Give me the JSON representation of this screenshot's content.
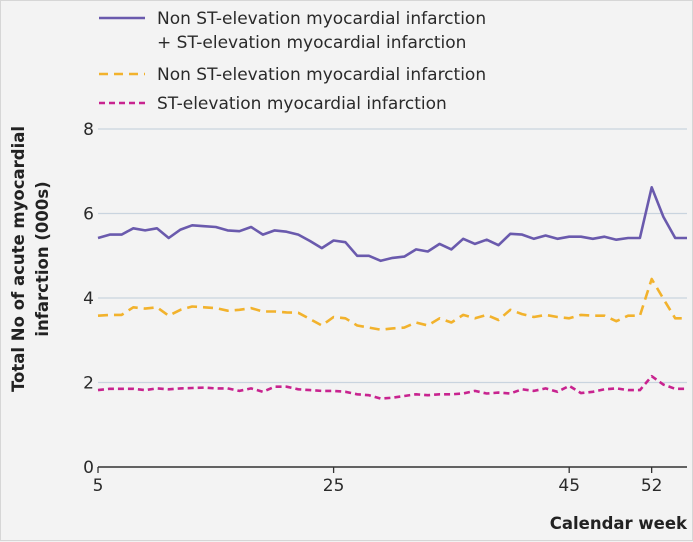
{
  "chart_data": {
    "type": "line",
    "xlabel": "Calendar week",
    "ylabel_line1": "Total No of acute myocardial",
    "ylabel_line2": "infarction (000s)",
    "xlim": [
      5,
      55
    ],
    "ylim": [
      0,
      8
    ],
    "x_ticks": [
      5,
      25,
      45,
      52
    ],
    "y_ticks": [
      0,
      2,
      4,
      6,
      8
    ],
    "grid": true,
    "legend_position": "top-left",
    "x": [
      5,
      6,
      7,
      8,
      9,
      10,
      11,
      12,
      13,
      14,
      15,
      16,
      17,
      18,
      19,
      20,
      21,
      22,
      23,
      24,
      25,
      26,
      27,
      28,
      29,
      30,
      31,
      32,
      33,
      34,
      35,
      36,
      37,
      38,
      39,
      40,
      41,
      42,
      43,
      44,
      45,
      46,
      47,
      48,
      49,
      50,
      51,
      52,
      53,
      54,
      55
    ],
    "series": [
      {
        "name_line1": "Non ST-elevation myocardial infarction",
        "name_line2": "+ ST-elevation myocardial infarction",
        "color": "#6a5aad",
        "dash": "solid",
        "values": [
          5.42,
          5.5,
          5.5,
          5.65,
          5.6,
          5.65,
          5.42,
          5.62,
          5.72,
          5.7,
          5.68,
          5.6,
          5.58,
          5.68,
          5.5,
          5.6,
          5.57,
          5.5,
          5.35,
          5.18,
          5.36,
          5.32,
          5.0,
          5.0,
          4.88,
          4.95,
          4.98,
          5.15,
          5.1,
          5.28,
          5.15,
          5.4,
          5.28,
          5.38,
          5.25,
          5.52,
          5.5,
          5.4,
          5.48,
          5.4,
          5.45,
          5.45,
          5.4,
          5.45,
          5.38,
          5.42,
          5.42,
          6.62,
          5.92,
          5.42,
          5.42
        ]
      },
      {
        "name_line1": "Non ST-elevation myocardial infarction",
        "color": "#f2b22c",
        "dash": "dashed",
        "values": [
          3.58,
          3.6,
          3.6,
          3.78,
          3.75,
          3.78,
          3.58,
          3.72,
          3.8,
          3.78,
          3.76,
          3.7,
          3.72,
          3.76,
          3.68,
          3.68,
          3.66,
          3.65,
          3.5,
          3.35,
          3.55,
          3.52,
          3.35,
          3.3,
          3.25,
          3.28,
          3.3,
          3.42,
          3.35,
          3.52,
          3.42,
          3.6,
          3.52,
          3.6,
          3.48,
          3.72,
          3.62,
          3.55,
          3.6,
          3.55,
          3.52,
          3.6,
          3.58,
          3.58,
          3.45,
          3.58,
          3.58,
          4.45,
          3.98,
          3.52,
          3.52
        ]
      },
      {
        "name_line1": "ST-elevation myocardial infarction",
        "color": "#c8238f",
        "dash": "dashed",
        "values": [
          1.82,
          1.85,
          1.85,
          1.85,
          1.82,
          1.86,
          1.84,
          1.86,
          1.87,
          1.88,
          1.86,
          1.86,
          1.8,
          1.86,
          1.78,
          1.9,
          1.9,
          1.84,
          1.82,
          1.8,
          1.8,
          1.78,
          1.72,
          1.7,
          1.62,
          1.64,
          1.68,
          1.72,
          1.7,
          1.72,
          1.72,
          1.74,
          1.8,
          1.74,
          1.76,
          1.74,
          1.84,
          1.8,
          1.86,
          1.78,
          1.92,
          1.75,
          1.78,
          1.84,
          1.86,
          1.82,
          1.82,
          2.15,
          1.95,
          1.85,
          1.85
        ]
      }
    ]
  }
}
